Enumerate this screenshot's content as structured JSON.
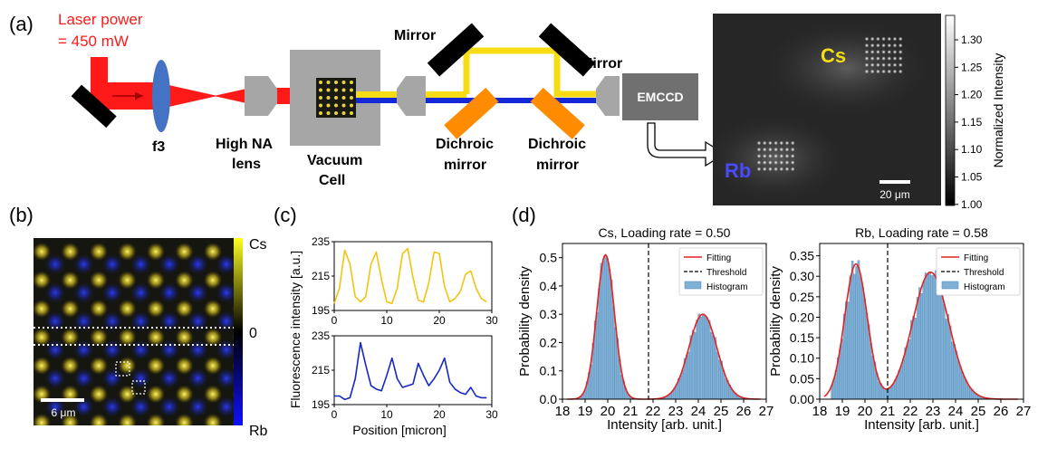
{
  "panel_labels": {
    "a": "(a)",
    "b": "(b)",
    "c": "(c)",
    "d": "(d)"
  },
  "colors": {
    "laser": "#ff1a1a",
    "cs": "#f5dc14",
    "rb": "#1428d8",
    "dichroic": "#ff8c00",
    "hist": "#7fb0d6",
    "fit": "#e52222",
    "optics_grey": "#a6a6a6",
    "lens_blue": "#4472c4"
  },
  "setup": {
    "laser_power_line1": "Laser power",
    "laser_power_line2": "= 450 mW",
    "f3": "f3",
    "high_na_line1": "High NA",
    "high_na_line2": "lens",
    "vacuum_line1": "Vacuum",
    "vacuum_line2": "Cell",
    "mirror1": "Mirror",
    "mirror2": "Mirror",
    "dichroic1_line1": "Dichroic",
    "dichroic1_line2": "mirror",
    "dichroic2_line1": "Dichroic",
    "dichroic2_line2": "mirror",
    "camera": "EMCCD"
  },
  "image_a": {
    "cs_label": "Cs",
    "rb_label": "Rb",
    "scalebar": "20 μm",
    "colorbar_label": "Normalized Intensity",
    "colorbar_ticks": [
      "1.30",
      "1.25",
      "1.20",
      "1.15",
      "1.10",
      "1.05",
      "1.00"
    ]
  },
  "image_b": {
    "scalebar": "6 μm",
    "colorbar_top": "Cs",
    "colorbar_mid": "0",
    "colorbar_bottom": "Rb"
  },
  "chart_data": [
    {
      "type": "line",
      "panel": "c-top",
      "ylabel": "Fluorescence intensity [a.u.]",
      "xlim": [
        0,
        30
      ],
      "ylim": [
        195,
        235
      ],
      "xticks": [
        "0",
        "10",
        "20",
        "30"
      ],
      "yticks": [
        "195",
        "215",
        "235"
      ],
      "color": "#f2c40f",
      "x": [
        0,
        1,
        2,
        3,
        4,
        5,
        6,
        7,
        8,
        9,
        10,
        11,
        12,
        13,
        14,
        15,
        16,
        17,
        18,
        19,
        20,
        21,
        22,
        23,
        24,
        25,
        26,
        27,
        28,
        29
      ],
      "y": [
        199,
        208,
        230,
        222,
        203,
        200,
        203,
        222,
        229,
        213,
        200,
        199,
        208,
        228,
        231,
        214,
        201,
        200,
        211,
        229,
        228,
        209,
        200,
        202,
        206,
        216,
        218,
        208,
        202,
        200
      ]
    },
    {
      "type": "line",
      "panel": "c-bottom",
      "xlabel": "Position [micron]",
      "xlim": [
        0,
        30
      ],
      "ylim": [
        195,
        235
      ],
      "xticks": [
        "0",
        "10",
        "20",
        "30"
      ],
      "yticks": [
        "195",
        "215",
        "235"
      ],
      "color": "#1428c8",
      "x": [
        0,
        1,
        2,
        3,
        4,
        5,
        6,
        7,
        8,
        9,
        10,
        11,
        12,
        13,
        14,
        15,
        16,
        17,
        18,
        19,
        20,
        21,
        22,
        23,
        24,
        25,
        26,
        27,
        28,
        29
      ],
      "y": [
        200,
        200,
        198,
        199,
        210,
        231,
        218,
        206,
        204,
        203,
        212,
        222,
        210,
        205,
        206,
        207,
        219,
        212,
        206,
        210,
        215,
        222,
        208,
        204,
        202,
        201,
        205,
        200,
        199,
        199
      ]
    },
    {
      "type": "bar",
      "panel": "d-left",
      "title": "Cs, Loading rate = 0.50",
      "xlabel": "Intensity [arb. unit.]",
      "ylabel": "Probability density",
      "xlim": [
        18,
        27
      ],
      "ylim": [
        0,
        0.55
      ],
      "xticks": [
        "18",
        "19",
        "20",
        "21",
        "22",
        "23",
        "24",
        "25",
        "26",
        "27"
      ],
      "yticks": [
        "0.0",
        "0.1",
        "0.2",
        "0.3",
        "0.4",
        "0.5"
      ],
      "threshold": 21.8,
      "legend": [
        "Fitting",
        "Threshold",
        "Histogram"
      ],
      "peaks": [
        {
          "mu": 19.9,
          "sigma": 0.39,
          "amp": 0.51
        },
        {
          "mu": 24.2,
          "sigma": 0.62,
          "amp": 0.3
        }
      ]
    },
    {
      "type": "bar",
      "panel": "d-right",
      "title": "Rb, Loading rate = 0.58",
      "xlabel": "Intensity [arb. unit.]",
      "ylabel": "Probability density",
      "xlim": [
        18,
        27
      ],
      "ylim": [
        0,
        0.38
      ],
      "xticks": [
        "18",
        "19",
        "20",
        "21",
        "22",
        "23",
        "24",
        "25",
        "26",
        "27"
      ],
      "yticks": [
        "0.00",
        "0.05",
        "0.10",
        "0.15",
        "0.20",
        "0.25",
        "0.30",
        "0.35"
      ],
      "threshold": 21.0,
      "legend": [
        "Fitting",
        "Threshold",
        "Histogram"
      ],
      "peaks": [
        {
          "mu": 19.6,
          "sigma": 0.5,
          "amp": 0.33
        },
        {
          "mu": 22.9,
          "sigma": 0.8,
          "amp": 0.31
        }
      ]
    }
  ]
}
